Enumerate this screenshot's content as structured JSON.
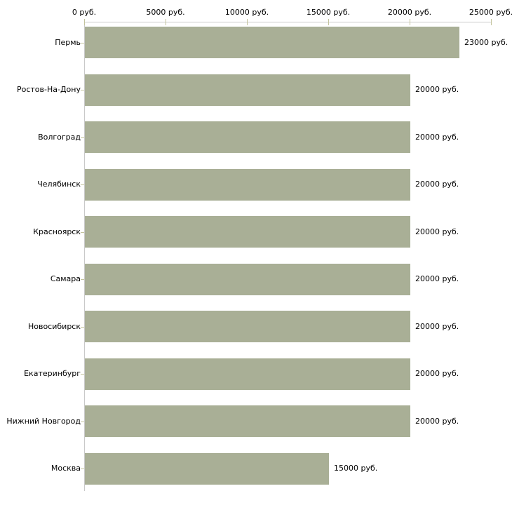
{
  "chart_data": {
    "type": "bar",
    "orientation": "horizontal",
    "title": "",
    "xlabel": "",
    "ylabel": "",
    "unit": "руб.",
    "categories": [
      "Пермь",
      "Ростов-На-Дону",
      "Волгоград",
      "Челябинск",
      "Красноярск",
      "Самара",
      "Новосибирск",
      "Екатеринбург",
      "Нижний Новгород",
      "Москва"
    ],
    "values": [
      23000,
      20000,
      20000,
      20000,
      20000,
      20000,
      20000,
      20000,
      20000,
      15000
    ],
    "value_labels": [
      "23000 руб.",
      "20000 руб.",
      "20000 руб.",
      "20000 руб.",
      "20000 руб.",
      "20000 руб.",
      "20000 руб.",
      "20000 руб.",
      "20000 руб.",
      "15000 руб."
    ],
    "axis": {
      "position": "top",
      "min": 0,
      "max": 25000,
      "ticks": [
        0,
        5000,
        10000,
        15000,
        20000,
        25000
      ],
      "tick_labels": [
        "0 руб.",
        "5000 руб.",
        "10000 руб.",
        "15000 руб.",
        "20000 руб.",
        "25000 руб."
      ]
    },
    "grid": false,
    "legend": false,
    "colors": {
      "bar": "#a9af96",
      "axis_line": "#c9c9c9",
      "tick": "#c3c39c",
      "text": "#000000",
      "background": "#ffffff"
    }
  }
}
